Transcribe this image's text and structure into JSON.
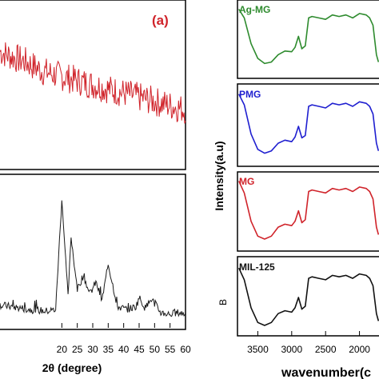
{
  "chart_data": [
    {
      "type": "line",
      "title": "(a)",
      "xlabel": "2θ (degree)",
      "ylabel": "",
      "xlim": [
        0,
        60
      ],
      "x_ticks": [
        "20",
        "25",
        "30",
        "35",
        "40",
        "45",
        "50",
        "55",
        "60"
      ],
      "grid": false,
      "series": [
        {
          "color": "#d0232a",
          "x": [
            0,
            5,
            8,
            10,
            12,
            14,
            16,
            18,
            20,
            22,
            24,
            26,
            28,
            30,
            32,
            34,
            36,
            38,
            40,
            42,
            44,
            46,
            48,
            50,
            52,
            54,
            56,
            58,
            60
          ],
          "y": [
            0.7,
            0.66,
            0.64,
            0.62,
            0.6,
            0.58,
            0.57,
            0.56,
            0.55,
            0.54,
            0.53,
            0.52,
            0.51,
            0.5,
            0.49,
            0.48,
            0.47,
            0.46,
            0.45,
            0.44,
            0.43,
            0.42,
            0.41,
            0.4,
            0.39,
            0.38,
            0.37,
            0.36,
            0.35
          ]
        },
        {
          "color": "#1a1a1a",
          "x": [
            0,
            10,
            15,
            18,
            20,
            22,
            23,
            25,
            27,
            29,
            31,
            33,
            35,
            38,
            41,
            44,
            45,
            47,
            49,
            52,
            55,
            58,
            60
          ],
          "y": [
            0.15,
            0.12,
            0.11,
            0.12,
            0.85,
            0.2,
            0.6,
            0.25,
            0.35,
            0.22,
            0.3,
            0.18,
            0.42,
            0.14,
            0.12,
            0.14,
            0.2,
            0.13,
            0.19,
            0.1,
            0.09,
            0.1,
            0.09
          ]
        }
      ]
    },
    {
      "type": "line",
      "xlabel": "wavenumber(c",
      "ylabel": "Intensity(a.u)",
      "xlim": [
        3800,
        1700
      ],
      "x_ticks": [
        "3500",
        "3000",
        "2500",
        "2000"
      ],
      "tick_values": [
        3500,
        3000,
        2500,
        2000
      ],
      "grid": false,
      "side_label": "B",
      "series": [
        {
          "name": "Ag-MG",
          "color": "#2e8b2e",
          "x": [
            3780,
            3700,
            3600,
            3500,
            3400,
            3300,
            3200,
            3100,
            3000,
            2950,
            2900,
            2850,
            2800,
            2750,
            2700,
            2600,
            2500,
            2400,
            2300,
            2200,
            2100,
            2000,
            1900,
            1850,
            1800,
            1750,
            1720
          ],
          "y": [
            92,
            80,
            45,
            25,
            18,
            20,
            30,
            35,
            34,
            40,
            55,
            38,
            42,
            80,
            82,
            80,
            78,
            84,
            82,
            84,
            80,
            86,
            84,
            80,
            70,
            30,
            20
          ]
        },
        {
          "name": "PMG",
          "color": "#1f1fd0",
          "x": [
            3780,
            3700,
            3600,
            3500,
            3400,
            3300,
            3200,
            3100,
            3000,
            2950,
            2900,
            2850,
            2800,
            2750,
            2700,
            2600,
            2500,
            2400,
            2300,
            2200,
            2100,
            2000,
            1900,
            1850,
            1800,
            1750,
            1720
          ],
          "y": [
            92,
            78,
            40,
            20,
            15,
            18,
            28,
            32,
            30,
            36,
            50,
            35,
            38,
            76,
            78,
            76,
            74,
            80,
            78,
            80,
            76,
            82,
            80,
            76,
            66,
            28,
            18
          ]
        },
        {
          "name": "MG",
          "color": "#d0232a",
          "x": [
            3780,
            3700,
            3600,
            3500,
            3400,
            3300,
            3200,
            3100,
            3000,
            2950,
            2900,
            2850,
            2800,
            2750,
            2700,
            2600,
            2500,
            2400,
            2300,
            2200,
            2100,
            2000,
            1900,
            1850,
            1800,
            1750,
            1720
          ],
          "y": [
            92,
            76,
            38,
            18,
            14,
            18,
            30,
            34,
            32,
            38,
            52,
            36,
            40,
            78,
            80,
            78,
            76,
            82,
            80,
            82,
            78,
            84,
            82,
            78,
            68,
            30,
            20
          ]
        },
        {
          "name": "MIL-125",
          "color": "#111111",
          "x": [
            3780,
            3700,
            3600,
            3500,
            3400,
            3300,
            3200,
            3100,
            3000,
            2950,
            2900,
            2850,
            2800,
            2750,
            2700,
            2600,
            2500,
            2400,
            2300,
            2200,
            2100,
            2000,
            1900,
            1850,
            1800,
            1750,
            1720
          ],
          "y": [
            90,
            74,
            36,
            16,
            12,
            16,
            28,
            32,
            30,
            36,
            50,
            34,
            38,
            76,
            78,
            76,
            74,
            80,
            78,
            80,
            76,
            82,
            80,
            76,
            66,
            28,
            18
          ]
        }
      ]
    }
  ]
}
